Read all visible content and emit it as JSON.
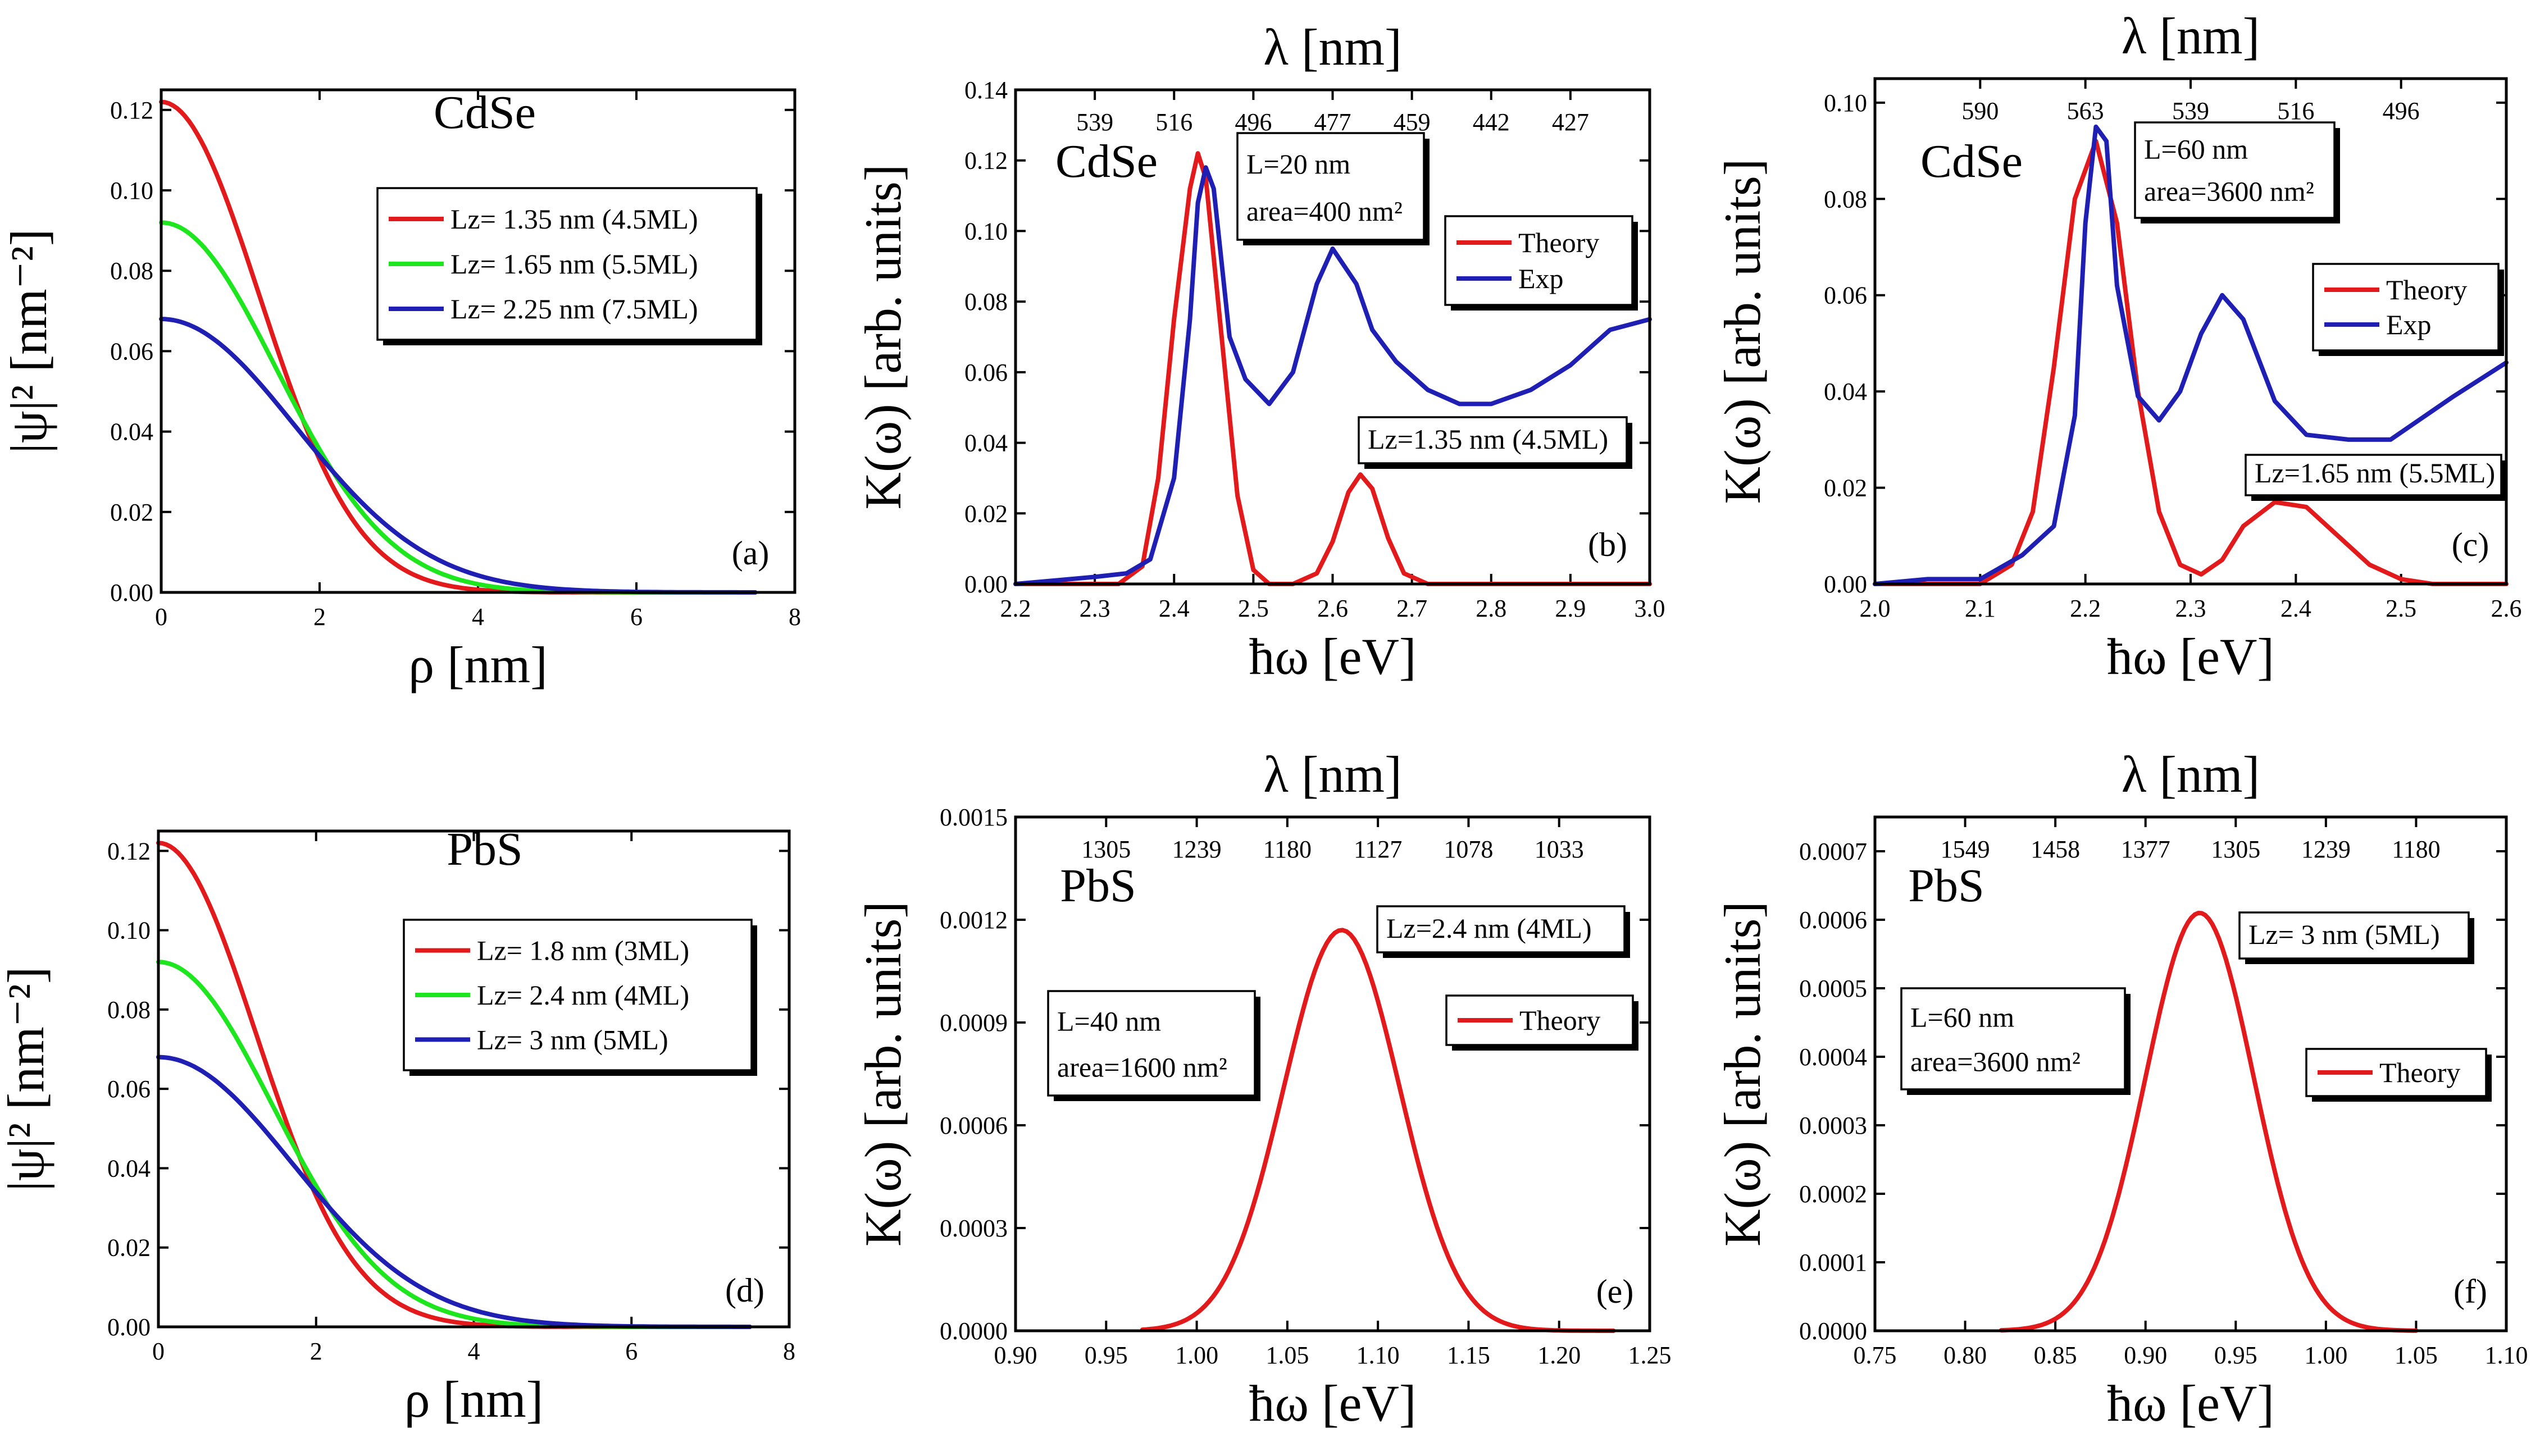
{
  "colors": {
    "theory": "#e31a1c",
    "exp": "#1f1fb4",
    "green": "#1ee61e",
    "red": "#e31a1c",
    "blue": "#1f1fb4"
  },
  "chart_data": [
    {
      "id": "a",
      "type": "line",
      "title": "CdSe",
      "panel_label": "(a)",
      "xlabel": "ρ [nm]",
      "ylabel": "|ψ|² [nm⁻²]",
      "xlim": [
        0,
        8
      ],
      "ylim": [
        0,
        0.125
      ],
      "xticks": [
        "0",
        "2",
        "4",
        "6",
        "8"
      ],
      "yticks": [
        "0.00",
        "0.02",
        "0.04",
        "0.06",
        "0.08",
        "0.10",
        "0.12"
      ],
      "legend_position": "top-right",
      "series": [
        {
          "name": "Lz= 1.35 nm (4.5ML)",
          "color_key": "red",
          "peak": 0.122,
          "width": 1.75,
          "x_end": 7.5
        },
        {
          "name": "Lz= 1.65 nm (5.5ML)",
          "color_key": "green",
          "peak": 0.092,
          "width": 2.05,
          "x_end": 7.5
        },
        {
          "name": "Lz= 2.25 nm (7.5ML)",
          "color_key": "blue",
          "peak": 0.068,
          "width": 2.4,
          "x_end": 7.5
        }
      ]
    },
    {
      "id": "b",
      "type": "line",
      "title": "CdSe",
      "panel_label": "(b)",
      "xlabel": "ħω [eV]",
      "ylabel": "K(ω) [arb. units]",
      "top_label": "λ [nm]",
      "xlim": [
        2.2,
        3.0
      ],
      "ylim": [
        0,
        0.14
      ],
      "xticks": [
        "2.2",
        "2.3",
        "2.4",
        "2.5",
        "2.6",
        "2.7",
        "2.8",
        "2.9",
        "3.0"
      ],
      "yticks": [
        "0.00",
        "0.02",
        "0.04",
        "0.06",
        "0.08",
        "0.10",
        "0.12",
        "0.14"
      ],
      "top_ticks": [
        {
          "label": "539",
          "ev": 2.3
        },
        {
          "label": "516",
          "ev": 2.4
        },
        {
          "label": "496",
          "ev": 2.5
        },
        {
          "label": "477",
          "ev": 2.6
        },
        {
          "label": "459",
          "ev": 2.7
        },
        {
          "label": "442",
          "ev": 2.8
        },
        {
          "label": "427",
          "ev": 2.9
        }
      ],
      "info": {
        "line1": "L=20 nm",
        "line2": "area=400 nm²"
      },
      "lz_label": "Lz=1.35 nm (4.5ML)",
      "legend_position": "top-right",
      "legend": [
        {
          "name": "Theory",
          "color_key": "theory"
        },
        {
          "name": "Exp",
          "color_key": "exp"
        }
      ],
      "series": [
        {
          "name": "Theory",
          "color_key": "theory",
          "x": [
            2.2,
            2.33,
            2.36,
            2.38,
            2.4,
            2.42,
            2.43,
            2.44,
            2.46,
            2.48,
            2.5,
            2.52,
            2.55,
            2.58,
            2.6,
            2.62,
            2.635,
            2.65,
            2.67,
            2.69,
            2.72,
            3.0
          ],
          "y": [
            0.0,
            0.0,
            0.005,
            0.03,
            0.075,
            0.112,
            0.122,
            0.115,
            0.07,
            0.025,
            0.004,
            0.0,
            0.0,
            0.003,
            0.012,
            0.026,
            0.031,
            0.027,
            0.013,
            0.003,
            0.0,
            0.0
          ]
        },
        {
          "name": "Exp",
          "color_key": "exp",
          "x": [
            2.2,
            2.25,
            2.3,
            2.34,
            2.37,
            2.4,
            2.42,
            2.43,
            2.44,
            2.45,
            2.47,
            2.49,
            2.52,
            2.55,
            2.58,
            2.6,
            2.63,
            2.65,
            2.68,
            2.72,
            2.76,
            2.8,
            2.85,
            2.9,
            2.95,
            3.0
          ],
          "y": [
            0.0,
            0.001,
            0.002,
            0.003,
            0.007,
            0.03,
            0.075,
            0.108,
            0.118,
            0.112,
            0.07,
            0.058,
            0.051,
            0.06,
            0.085,
            0.095,
            0.085,
            0.072,
            0.063,
            0.055,
            0.051,
            0.051,
            0.055,
            0.062,
            0.072,
            0.075
          ]
        }
      ]
    },
    {
      "id": "c",
      "type": "line",
      "title": "CdSe",
      "panel_label": "(c)",
      "xlabel": "ħω [eV]",
      "ylabel": "K(ω) [arb. units]",
      "top_label": "λ [nm]",
      "xlim": [
        2.0,
        2.6
      ],
      "ylim": [
        0,
        0.105
      ],
      "xticks": [
        "2.0",
        "2.1",
        "2.2",
        "2.3",
        "2.4",
        "2.5",
        "2.6"
      ],
      "yticks": [
        "0.00",
        "0.02",
        "0.04",
        "0.06",
        "0.08",
        "0.10"
      ],
      "top_ticks": [
        {
          "label": "590",
          "ev": 2.1
        },
        {
          "label": "563",
          "ev": 2.2
        },
        {
          "label": "539",
          "ev": 2.3
        },
        {
          "label": "516",
          "ev": 2.4
        },
        {
          "label": "496",
          "ev": 2.5
        }
      ],
      "info": {
        "line1": "L=60 nm",
        "line2": "area=3600 nm²"
      },
      "lz_label": "Lz=1.65 nm (5.5ML)",
      "legend_position": "right",
      "legend": [
        {
          "name": "Theory",
          "color_key": "theory"
        },
        {
          "name": "Exp",
          "color_key": "exp"
        }
      ],
      "series": [
        {
          "name": "Theory",
          "color_key": "theory",
          "x": [
            2.0,
            2.1,
            2.13,
            2.15,
            2.17,
            2.19,
            2.21,
            2.23,
            2.25,
            2.27,
            2.29,
            2.31,
            2.33,
            2.35,
            2.38,
            2.41,
            2.44,
            2.47,
            2.5,
            2.53,
            2.6
          ],
          "y": [
            0.0,
            0.0,
            0.004,
            0.015,
            0.045,
            0.08,
            0.092,
            0.075,
            0.04,
            0.015,
            0.004,
            0.002,
            0.005,
            0.012,
            0.017,
            0.016,
            0.01,
            0.004,
            0.001,
            0.0,
            0.0
          ]
        },
        {
          "name": "Exp",
          "color_key": "exp",
          "x": [
            2.0,
            2.05,
            2.1,
            2.14,
            2.17,
            2.19,
            2.2,
            2.21,
            2.22,
            2.23,
            2.25,
            2.27,
            2.29,
            2.31,
            2.33,
            2.35,
            2.38,
            2.41,
            2.45,
            2.49,
            2.55,
            2.6
          ],
          "y": [
            0.0,
            0.001,
            0.001,
            0.006,
            0.012,
            0.035,
            0.075,
            0.095,
            0.092,
            0.062,
            0.039,
            0.034,
            0.04,
            0.052,
            0.06,
            0.055,
            0.038,
            0.031,
            0.03,
            0.03,
            0.039,
            0.046
          ]
        }
      ]
    },
    {
      "id": "d",
      "type": "line",
      "title": "PbS",
      "panel_label": "(d)",
      "xlabel": "ρ [nm]",
      "ylabel": "|ψ|² [nm⁻²]",
      "xlim": [
        0,
        8
      ],
      "ylim": [
        0,
        0.125
      ],
      "xticks": [
        "0",
        "2",
        "4",
        "6",
        "8"
      ],
      "yticks": [
        "0.00",
        "0.02",
        "0.04",
        "0.06",
        "0.08",
        "0.10",
        "0.12"
      ],
      "legend_position": "right",
      "series": [
        {
          "name": "Lz= 1.8 nm (3ML)",
          "color_key": "red",
          "peak": 0.122,
          "width": 1.75,
          "x_end": 7.5
        },
        {
          "name": "Lz= 2.4 nm (4ML)",
          "color_key": "green",
          "peak": 0.092,
          "width": 2.05,
          "x_end": 7.5
        },
        {
          "name": "Lz=   3  nm (5ML)",
          "color_key": "blue",
          "peak": 0.068,
          "width": 2.4,
          "x_end": 7.5
        }
      ]
    },
    {
      "id": "e",
      "type": "line",
      "title": "PbS",
      "panel_label": "(e)",
      "xlabel": "ħω [eV]",
      "ylabel": "K(ω) [arb. units]",
      "top_label": "λ [nm]",
      "xlim": [
        0.9,
        1.25
      ],
      "ylim": [
        0,
        0.0015
      ],
      "xticks": [
        "0.90",
        "0.95",
        "1.00",
        "1.05",
        "1.10",
        "1.15",
        "1.20",
        "1.25"
      ],
      "yticks": [
        "0.0000",
        "0.0003",
        "0.0006",
        "0.0009",
        "0.0012",
        "0.0015"
      ],
      "top_ticks": [
        {
          "label": "1305",
          "ev": 0.95
        },
        {
          "label": "1239",
          "ev": 1.0
        },
        {
          "label": "1180",
          "ev": 1.05
        },
        {
          "label": "1127",
          "ev": 1.1
        },
        {
          "label": "1078",
          "ev": 1.15
        },
        {
          "label": "1033",
          "ev": 1.2
        }
      ],
      "info": {
        "line1": "L=40 nm",
        "line2": "area=1600 nm²"
      },
      "lz_label": "Lz=2.4 nm (4ML)",
      "legend_position": "top-right",
      "legend": [
        {
          "name": "Theory",
          "color_key": "theory"
        }
      ],
      "series": [
        {
          "name": "Theory",
          "color_key": "theory",
          "gauss": {
            "center": 1.08,
            "amp": 0.00117,
            "sigma": 0.032
          },
          "range": [
            0.97,
            1.23
          ]
        }
      ]
    },
    {
      "id": "f",
      "type": "line",
      "title": "PbS",
      "panel_label": "(f)",
      "xlabel": "ħω [eV]",
      "ylabel": "K(ω) [arb. units]",
      "top_label": "λ [nm]",
      "xlim": [
        0.75,
        1.1
      ],
      "ylim": [
        0,
        0.00075
      ],
      "xticks": [
        "0.75",
        "0.80",
        "0.85",
        "0.90",
        "0.95",
        "1.00",
        "1.05",
        "1.10"
      ],
      "yticks": [
        "0.0000",
        "0.0001",
        "0.0002",
        "0.0003",
        "0.0004",
        "0.0005",
        "0.0006",
        "0.0007"
      ],
      "top_ticks": [
        {
          "label": "1549",
          "ev": 0.8
        },
        {
          "label": "1458",
          "ev": 0.85
        },
        {
          "label": "1377",
          "ev": 0.9
        },
        {
          "label": "1305",
          "ev": 0.95
        },
        {
          "label": "1239",
          "ev": 1.0
        },
        {
          "label": "1180",
          "ev": 1.05
        }
      ],
      "info": {
        "line1": "L=60 nm",
        "line2": "area=3600 nm²"
      },
      "lz_label": "Lz= 3 nm (5ML)",
      "legend_position": "right",
      "legend": [
        {
          "name": "Theory",
          "color_key": "theory"
        }
      ],
      "series": [
        {
          "name": "Theory",
          "color_key": "theory",
          "gauss": {
            "center": 0.93,
            "amp": 0.00061,
            "sigma": 0.03
          },
          "range": [
            0.82,
            1.05
          ]
        }
      ]
    }
  ]
}
